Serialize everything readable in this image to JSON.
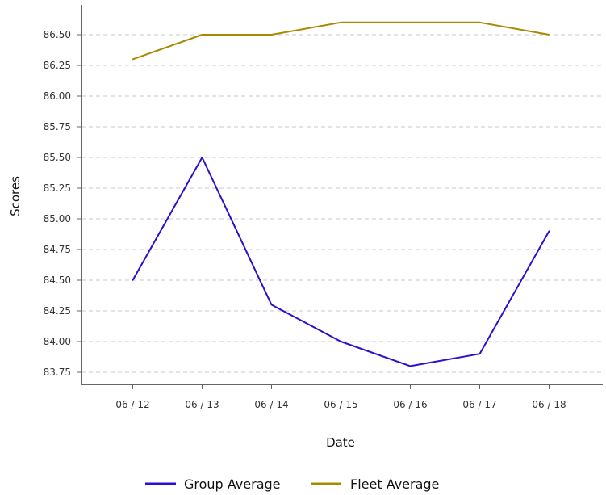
{
  "chart_data": {
    "type": "line",
    "categories": [
      "06 / 12",
      "06 / 13",
      "06 / 14",
      "06 / 15",
      "06 / 16",
      "06 / 17",
      "06 / 18"
    ],
    "series": [
      {
        "name": "Group Average",
        "color": "#2b0fcf",
        "values": [
          84.5,
          85.5,
          84.3,
          84.0,
          83.8,
          83.9,
          84.9
        ]
      },
      {
        "name": "Fleet Average",
        "color": "#a88a00",
        "values": [
          86.3,
          86.5,
          86.5,
          86.6,
          86.6,
          86.6,
          86.5
        ]
      }
    ],
    "yticks": [
      "83.75",
      "84.00",
      "84.25",
      "84.50",
      "84.75",
      "85.00",
      "85.25",
      "85.50",
      "85.75",
      "86.00",
      "86.25",
      "86.50"
    ],
    "xlabel": "Date",
    "ylabel": "Scores",
    "grid": true,
    "legend_position": "bottom"
  }
}
